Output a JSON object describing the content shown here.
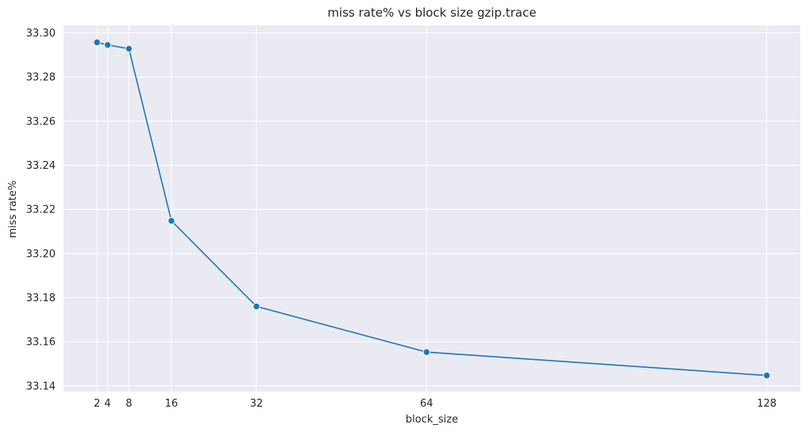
{
  "chart_data": {
    "type": "line",
    "title": "miss rate% vs block size gzip.trace",
    "xlabel": "block_size",
    "ylabel": "miss rate%",
    "x": [
      2,
      4,
      8,
      16,
      32,
      64,
      128
    ],
    "series": [
      {
        "values": [
          33.2957,
          33.2945,
          33.2928,
          33.2148,
          33.176,
          33.1553,
          33.1447
        ]
      }
    ],
    "xticks": [
      2,
      4,
      8,
      16,
      32,
      64,
      128
    ],
    "xtick_labels": [
      "2",
      "4",
      "8",
      "16",
      "32",
      "64",
      "128"
    ],
    "yticks": [
      33.14,
      33.16,
      33.18,
      33.2,
      33.22,
      33.24,
      33.26,
      33.28,
      33.3
    ],
    "ytick_labels": [
      "33.14",
      "33.16",
      "33.18",
      "33.20",
      "33.22",
      "33.24",
      "33.26",
      "33.28",
      "33.30"
    ],
    "xlim": [
      -4.3,
      134.3
    ],
    "ylim": [
      33.1374,
      33.3034
    ],
    "grid": true,
    "marker": "circle",
    "colors": {
      "line": "#1f77b4",
      "marker_edge": "#ffffff",
      "plot_background": "#eaeaf2",
      "grid": "#ffffff"
    }
  }
}
